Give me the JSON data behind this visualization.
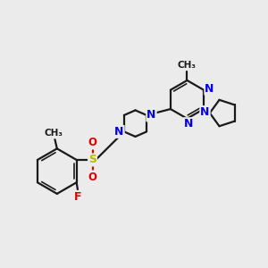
{
  "background_color": "#ebebeb",
  "bond_color": "#1a1a1a",
  "N_color": "#0000ee",
  "F_color": "#dd0000",
  "S_color": "#bbbb00",
  "O_color": "#dd0000",
  "figsize": [
    3.0,
    3.0
  ],
  "dpi": 100,
  "xlim": [
    0,
    10
  ],
  "ylim": [
    0,
    10
  ]
}
